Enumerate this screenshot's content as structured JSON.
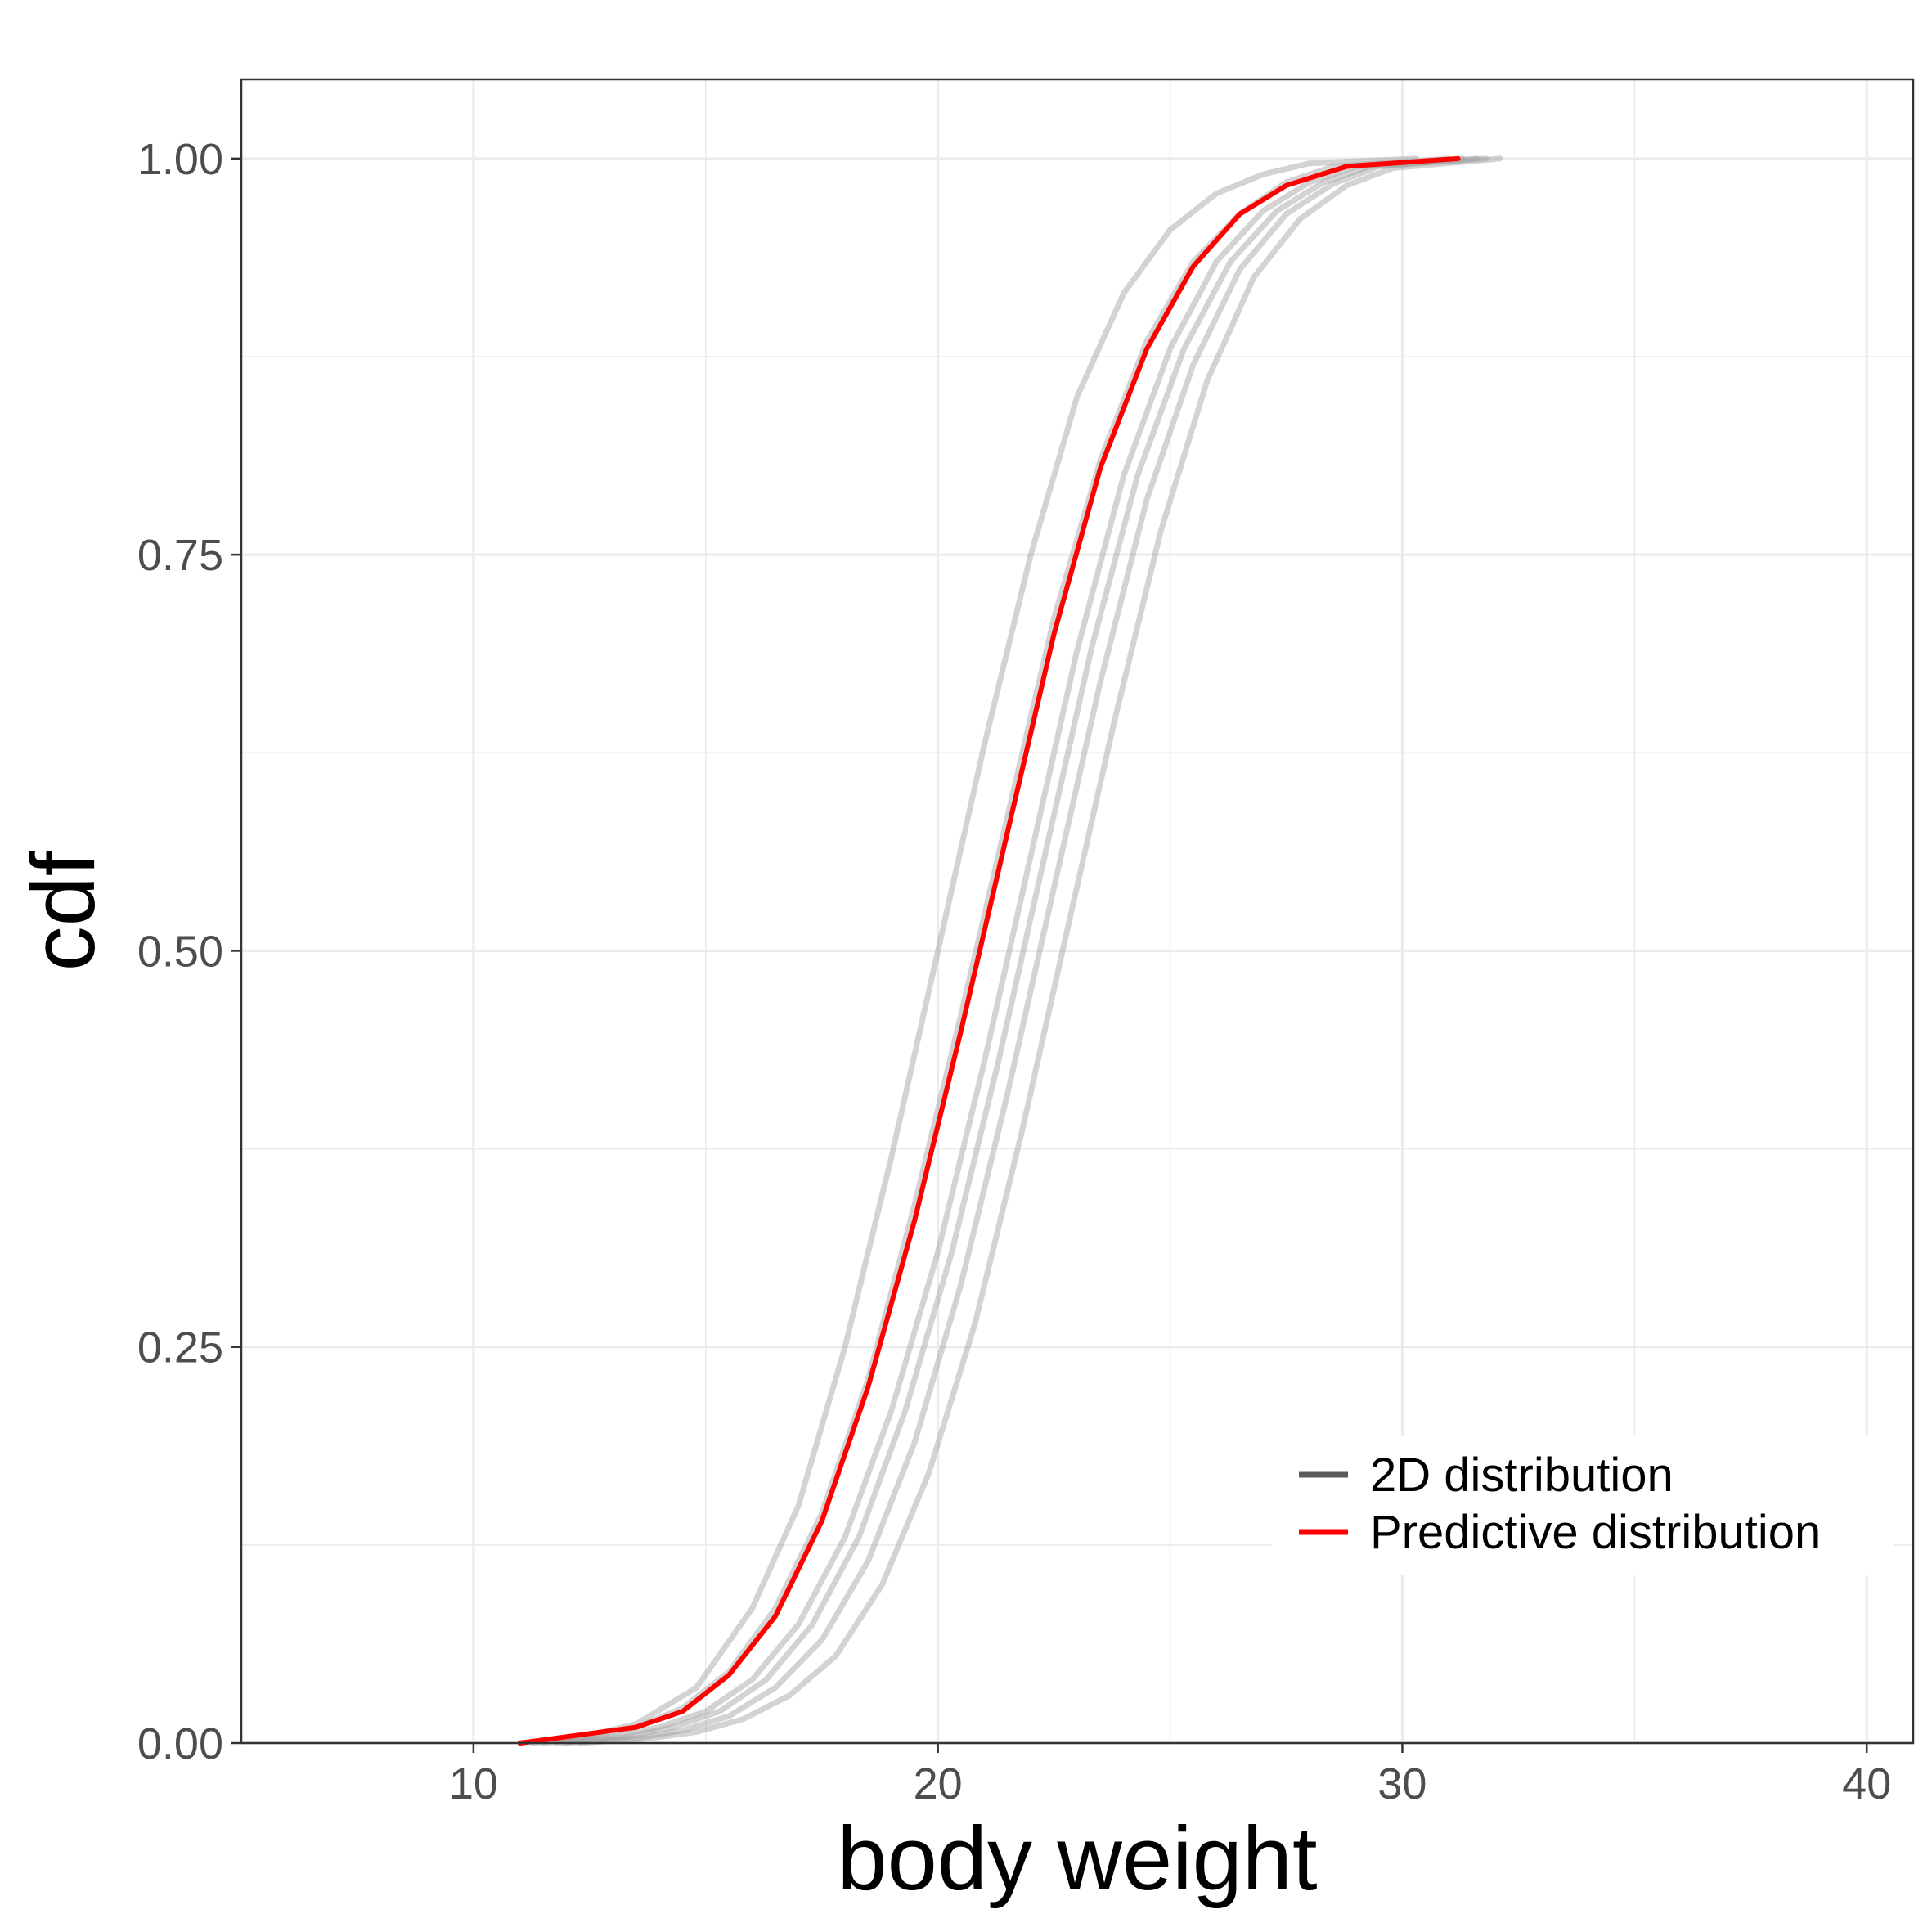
{
  "chart_data": {
    "type": "line",
    "title": "",
    "xlabel": "body weight",
    "ylabel": "cdf",
    "xlim": [
      5,
      41
    ],
    "ylim": [
      0,
      1.05
    ],
    "x_ticks": [
      10,
      20,
      30,
      40
    ],
    "x_tick_labels": [
      "10",
      "20",
      "30",
      "40"
    ],
    "y_ticks": [
      0,
      0.25,
      0.5,
      0.75,
      1.0
    ],
    "y_tick_labels": [
      "0.00",
      "0.25",
      "0.50",
      "0.75",
      "1.00"
    ],
    "grid": true,
    "legend": {
      "position": "bottom-right",
      "entries": [
        {
          "label": "2D distribution",
          "color": "#5a5a5a"
        },
        {
          "label": "Predictive distribution",
          "color": "#ff0000"
        }
      ]
    },
    "colors": {
      "2d": "#9e9e9e",
      "predictive": "#ff0000"
    },
    "series_2d": [
      {
        "x": [
          11.3,
          12.5,
          13.5,
          14.8,
          16.0,
          17.0,
          18.0,
          19.0,
          20.0,
          21.0,
          22.0,
          23.0,
          24.0,
          25.0,
          26.0,
          27.0,
          28.0,
          30.3
        ],
        "y": [
          0.0,
          0.005,
          0.012,
          0.035,
          0.085,
          0.15,
          0.25,
          0.37,
          0.5,
          0.63,
          0.75,
          0.85,
          0.915,
          0.955,
          0.978,
          0.99,
          0.997,
          1.0
        ]
      },
      {
        "x": [
          11.0,
          12.5,
          13.5,
          14.5,
          15.5,
          16.5,
          17.5,
          18.5,
          19.5,
          20.5,
          21.5,
          22.5,
          23.5,
          24.5,
          25.5,
          26.5,
          27.5,
          28.5,
          31.0
        ],
        "y": [
          0.0,
          0.004,
          0.01,
          0.022,
          0.045,
          0.085,
          0.145,
          0.23,
          0.34,
          0.46,
          0.585,
          0.71,
          0.81,
          0.885,
          0.935,
          0.965,
          0.985,
          0.995,
          1.0
        ]
      },
      {
        "x": [
          11.5,
          13.0,
          14.0,
          15.0,
          16.0,
          17.0,
          18.0,
          19.0,
          20.0,
          21.0,
          22.0,
          23.0,
          24.0,
          25.0,
          26.0,
          27.0,
          28.0,
          29.0,
          31.3
        ],
        "y": [
          0.0,
          0.004,
          0.01,
          0.02,
          0.04,
          0.075,
          0.13,
          0.21,
          0.31,
          0.43,
          0.56,
          0.69,
          0.8,
          0.88,
          0.935,
          0.967,
          0.985,
          0.995,
          1.0
        ]
      },
      {
        "x": [
          11.8,
          13.3,
          14.3,
          15.3,
          16.3,
          17.3,
          18.3,
          19.3,
          20.3,
          21.3,
          22.3,
          23.3,
          24.3,
          25.3,
          26.3,
          27.3,
          28.3,
          29.3,
          31.6
        ],
        "y": [
          0.0,
          0.004,
          0.01,
          0.02,
          0.04,
          0.075,
          0.13,
          0.21,
          0.31,
          0.43,
          0.56,
          0.69,
          0.8,
          0.88,
          0.935,
          0.967,
          0.985,
          0.995,
          1.0
        ]
      },
      {
        "x": [
          12.0,
          13.5,
          14.5,
          15.5,
          16.5,
          17.5,
          18.5,
          19.5,
          20.5,
          21.5,
          22.5,
          23.5,
          24.5,
          25.5,
          26.5,
          27.5,
          28.5,
          29.5,
          31.8
        ],
        "y": [
          0.0,
          0.003,
          0.008,
          0.017,
          0.035,
          0.065,
          0.115,
          0.19,
          0.29,
          0.41,
          0.54,
          0.67,
          0.785,
          0.87,
          0.93,
          0.965,
          0.984,
          0.995,
          1.0
        ]
      },
      {
        "x": [
          12.3,
          13.8,
          14.8,
          15.8,
          16.8,
          17.8,
          18.8,
          19.8,
          20.8,
          21.8,
          22.8,
          23.8,
          24.8,
          25.8,
          26.8,
          27.8,
          28.8,
          29.8,
          32.1
        ],
        "y": [
          0.0,
          0.003,
          0.007,
          0.015,
          0.03,
          0.055,
          0.1,
          0.17,
          0.265,
          0.385,
          0.515,
          0.645,
          0.765,
          0.86,
          0.925,
          0.962,
          0.983,
          0.994,
          1.0
        ]
      }
    ],
    "series_predictive": {
      "name": "Predictive distribution",
      "x": [
        11.0,
        12.0,
        13.5,
        14.5,
        15.5,
        16.5,
        17.5,
        18.5,
        19.5,
        20.0,
        20.5,
        21.5,
        22.5,
        23.5,
        24.5,
        25.5,
        26.5,
        27.5,
        28.8,
        31.2
      ],
      "y": [
        0.0,
        0.004,
        0.01,
        0.02,
        0.043,
        0.08,
        0.14,
        0.225,
        0.33,
        0.39,
        0.45,
        0.575,
        0.7,
        0.805,
        0.88,
        0.932,
        0.965,
        0.983,
        0.995,
        1.0
      ]
    }
  }
}
